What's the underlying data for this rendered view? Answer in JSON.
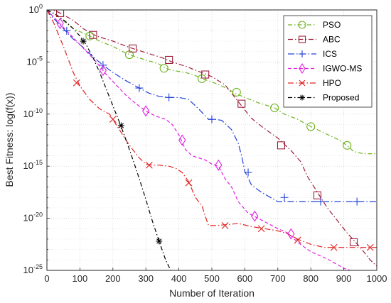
{
  "chart_data": {
    "type": "line",
    "xlabel": "Number of Iteration",
    "ylabel": "Best Fitness: log(f(x))",
    "xlim": [
      0,
      1000
    ],
    "yscale": "log",
    "ylim_exponent": [
      -25,
      0
    ],
    "xticks": [
      0,
      100,
      200,
      300,
      400,
      500,
      600,
      700,
      800,
      900,
      1000
    ],
    "yticks": [
      {
        "base": "10",
        "exp": "0",
        "value": 0
      },
      {
        "base": "10",
        "exp": "-5",
        "value": -5
      },
      {
        "base": "10",
        "exp": "-10",
        "value": -10
      },
      {
        "base": "10",
        "exp": "-15",
        "value": -15
      },
      {
        "base": "10",
        "exp": "-20",
        "value": -20
      },
      {
        "base": "10",
        "exp": "-25",
        "value": -25
      }
    ],
    "grid": true,
    "legend_position": "top-right",
    "series": [
      {
        "name": "PSO",
        "color": "#6fb320",
        "dash": "6,3,1.5,3",
        "marker": "circle",
        "x": [
          0,
          20,
          40,
          80,
          130,
          160,
          200,
          230,
          260,
          300,
          340,
          360,
          380,
          420,
          450,
          470,
          500,
          530,
          550,
          570,
          600,
          640,
          690,
          720,
          760,
          800,
          840,
          880,
          910,
          930,
          960,
          1000
        ],
        "y": [
          0,
          -0.3,
          -0.8,
          -1.8,
          -2.5,
          -3.0,
          -3.5,
          -4.0,
          -4.4,
          -4.8,
          -5.2,
          -5.6,
          -5.8,
          -6.0,
          -6.3,
          -6.6,
          -6.9,
          -7.3,
          -7.6,
          -8.0,
          -8.4,
          -8.9,
          -9.4,
          -10.0,
          -10.5,
          -11.2,
          -11.8,
          -12.4,
          -13.0,
          -13.6,
          -13.8,
          -13.8
        ],
        "markers_x": [
          130,
          250,
          355,
          470,
          575,
          690,
          800,
          910
        ],
        "markers_y": [
          -2.5,
          -4.3,
          -5.6,
          -6.6,
          -7.9,
          -9.4,
          -11.2,
          -13.0
        ]
      },
      {
        "name": "ABC",
        "color": "#9e1f3a",
        "dash": "7,3,1.5,3",
        "marker": "square",
        "x": [
          0,
          20,
          40,
          80,
          110,
          150,
          200,
          250,
          300,
          350,
          380,
          420,
          460,
          500,
          540,
          560,
          590,
          620,
          660,
          700,
          740,
          770,
          790,
          810,
          830,
          850,
          880,
          910,
          950,
          980,
          1000
        ],
        "y": [
          0,
          0,
          -0.3,
          -1.0,
          -1.8,
          -2.5,
          -3.0,
          -3.6,
          -4.1,
          -4.6,
          -5.0,
          -5.4,
          -5.9,
          -6.4,
          -7.2,
          -8.0,
          -9.2,
          -10.4,
          -11.4,
          -12.3,
          -13.5,
          -14.6,
          -16.0,
          -17.0,
          -18.0,
          -19.0,
          -20.2,
          -21.4,
          -22.8,
          -24.0,
          -24.6
        ],
        "markers_x": [
          40,
          140,
          260,
          370,
          480,
          590,
          710,
          820,
          930
        ],
        "markers_y": [
          -0.3,
          -2.4,
          -3.7,
          -4.8,
          -6.2,
          -9.0,
          -13.0,
          -17.8,
          -22.3
        ]
      },
      {
        "name": "ICS",
        "color": "#2040d8",
        "dash": "9,3,1.5,3",
        "marker": "plus",
        "x": [
          0,
          20,
          50,
          80,
          110,
          140,
          170,
          200,
          240,
          280,
          310,
          340,
          370,
          400,
          430,
          460,
          490,
          510,
          530,
          560,
          580,
          590,
          600,
          620,
          650,
          700,
          750,
          800,
          850,
          900,
          950,
          1000
        ],
        "y": [
          0,
          -0.8,
          -1.8,
          -2.8,
          -3.6,
          -4.5,
          -5.3,
          -6.0,
          -6.8,
          -7.5,
          -8.0,
          -8.3,
          -8.4,
          -8.4,
          -8.6,
          -9.5,
          -10.5,
          -10.5,
          -10.6,
          -11.5,
          -12.8,
          -14.0,
          -15.5,
          -16.8,
          -17.5,
          -18.4,
          -18.4,
          -18.4,
          -18.4,
          -18.4,
          -18.4,
          -18.4
        ],
        "markers_x": [
          60,
          170,
          280,
          370,
          500,
          610,
          720,
          830,
          940
        ],
        "markers_y": [
          -2.0,
          -5.3,
          -7.5,
          -8.4,
          -10.5,
          -15.6,
          -18.0,
          -18.4,
          -18.4
        ]
      },
      {
        "name": "IGWO-MS",
        "color": "#e020e0",
        "dash": "5,3",
        "marker": "diamond",
        "x": [
          0,
          30,
          60,
          90,
          120,
          150,
          180,
          210,
          240,
          270,
          300,
          330,
          360,
          380,
          400,
          420,
          440,
          460,
          480,
          500,
          520,
          540,
          560,
          580,
          610,
          640,
          670,
          700,
          730,
          760,
          800,
          850,
          900,
          1000
        ],
        "y": [
          0,
          -1.0,
          -2.0,
          -3.0,
          -4.0,
          -5.0,
          -6.2,
          -7.2,
          -8.2,
          -9.0,
          -9.7,
          -10.2,
          -10.5,
          -11.0,
          -12.0,
          -13.4,
          -14.0,
          -14.2,
          -14.4,
          -14.8,
          -15.0,
          -16.2,
          -17.0,
          -18.4,
          -19.5,
          -20.0,
          -20.5,
          -21.0,
          -21.4,
          -22.3,
          -23.2,
          -23.9,
          -24.8,
          -25.8
        ],
        "markers_x": [
          40,
          170,
          300,
          410,
          520,
          630,
          740
        ],
        "markers_y": [
          -1.3,
          -5.8,
          -9.7,
          -12.5,
          -14.9,
          -19.8,
          -21.5
        ]
      },
      {
        "name": "HPO",
        "color": "#e02020",
        "dash": "8,3,1.5,3",
        "marker": "x",
        "x": [
          0,
          20,
          50,
          80,
          100,
          130,
          160,
          190,
          210,
          230,
          250,
          280,
          300,
          320,
          340,
          370,
          390,
          410,
          430,
          450,
          470,
          480,
          490,
          510,
          550,
          580,
          620,
          660,
          700,
          730,
          760,
          800,
          840,
          880,
          920,
          960,
          1000
        ],
        "y": [
          0,
          -1.2,
          -3.5,
          -6.0,
          -7.3,
          -8.6,
          -9.5,
          -10.0,
          -11.0,
          -12.0,
          -13.0,
          -14.2,
          -14.8,
          -14.9,
          -14.9,
          -15.0,
          -15.2,
          -15.6,
          -16.5,
          -18.0,
          -18.8,
          -19.8,
          -20.7,
          -20.7,
          -20.6,
          -20.5,
          -20.8,
          -21.0,
          -21.2,
          -21.5,
          -22.0,
          -22.5,
          -22.8,
          -22.8,
          -22.8,
          -22.8,
          -22.8
        ],
        "markers_x": [
          90,
          200,
          310,
          430,
          540,
          650,
          760,
          870,
          980
        ],
        "markers_y": [
          -7.0,
          -10.5,
          -14.9,
          -16.6,
          -20.7,
          -21.0,
          -22.1,
          -22.8,
          -22.8
        ]
      },
      {
        "name": "Proposed",
        "color": "#000000",
        "dash": "6,3,1.5,3",
        "marker": "star",
        "x": [
          0,
          30,
          60,
          80,
          100,
          120,
          140,
          160,
          180,
          200,
          220,
          240,
          260,
          280,
          300,
          320,
          340,
          360,
          380
        ],
        "y": [
          0,
          -0.5,
          -1.2,
          -1.8,
          -2.5,
          -3.4,
          -4.6,
          -6.0,
          -7.6,
          -9.2,
          -10.8,
          -12.5,
          -14.3,
          -16.2,
          -18.2,
          -20.3,
          -22.2,
          -24.0,
          -25.3
        ],
        "markers_x": [
          110,
          225,
          340
        ],
        "markers_y": [
          -3.0,
          -11.1,
          -22.2
        ]
      }
    ]
  }
}
